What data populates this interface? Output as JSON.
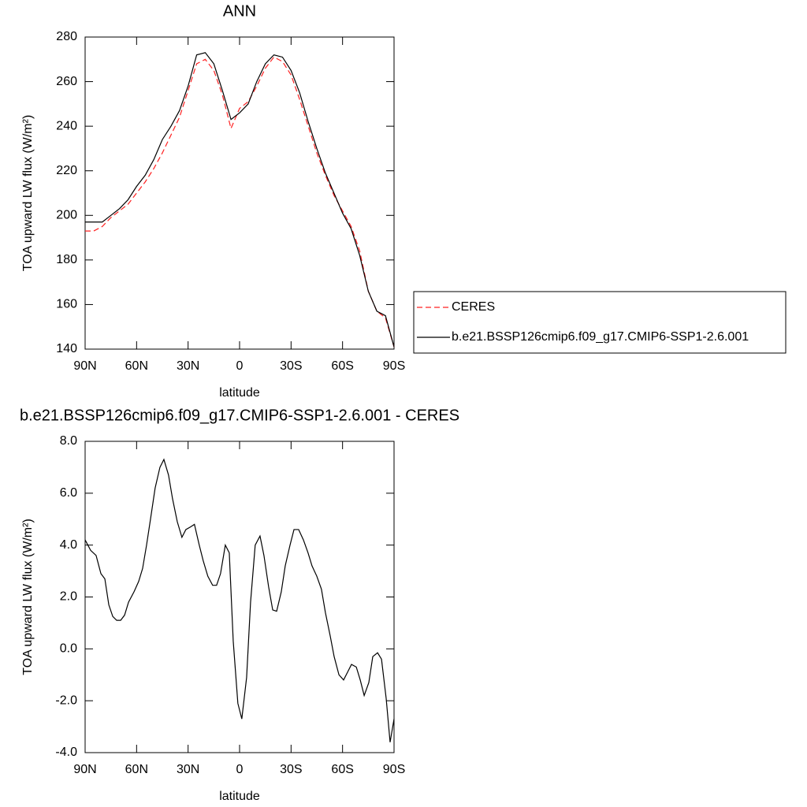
{
  "chart_data": [
    {
      "type": "line",
      "title": "ANN",
      "xlabel": "latitude",
      "ylabel": "TOA upward LW flux (W/m²)",
      "x": [
        90,
        85,
        80,
        75,
        70,
        65,
        60,
        55,
        50,
        45,
        40,
        35,
        30,
        25,
        20,
        15,
        10,
        5,
        0,
        -5,
        -10,
        -15,
        -20,
        -25,
        -30,
        -35,
        -40,
        -45,
        -50,
        -55,
        -60,
        -65,
        -70,
        -75,
        -80,
        -85,
        -90
      ],
      "series": [
        {
          "name": "CERES",
          "color": "#ff2020",
          "dashed": true,
          "values": [
            193,
            193,
            195,
            199,
            202,
            205,
            210,
            215,
            221,
            228,
            236,
            244,
            256,
            268,
            270,
            265,
            254,
            239,
            248,
            251,
            258,
            266,
            271,
            269,
            263,
            252,
            240,
            228,
            218,
            209,
            202,
            195,
            184,
            166,
            157,
            154,
            141
          ]
        },
        {
          "name": "b.e21.BSSP126cmip6.f09_g17.CMIP6-SSP1-2.6.001",
          "color": "#000000",
          "dashed": false,
          "values": [
            197,
            197,
            197,
            200,
            203,
            207,
            213,
            218,
            225,
            234,
            240,
            247,
            258,
            272,
            273,
            268,
            256,
            243,
            246,
            250,
            260,
            268,
            272,
            271,
            265,
            255,
            242,
            230,
            219,
            210,
            201,
            194,
            182,
            166,
            157,
            155,
            141
          ]
        }
      ],
      "xlim": [
        90,
        -90
      ],
      "xticks": [
        {
          "value": 90,
          "label": "90N"
        },
        {
          "value": 60,
          "label": "60N"
        },
        {
          "value": 30,
          "label": "30N"
        },
        0,
        {
          "value": -30,
          "label": "30S"
        },
        {
          "value": -60,
          "label": "60S"
        },
        {
          "value": -90,
          "label": "90S"
        }
      ],
      "ylim": [
        140,
        280
      ],
      "yticks": [
        140,
        160,
        180,
        200,
        220,
        240,
        260,
        280
      ],
      "legend": "right"
    },
    {
      "type": "line",
      "title": "b.e21.BSSP126cmip6.f09_g17.CMIP6-SSP1-2.6.001 - CERES",
      "xlabel": "latitude",
      "ylabel": "TOA upward LW flux (W/m²)",
      "x": [
        90,
        86.8,
        83.6,
        80.8,
        78.5,
        76.2,
        73.9,
        71.6,
        69.3,
        67.0,
        64.7,
        61.5,
        58.8,
        56.5,
        54.2,
        51.9,
        49.2,
        46.4,
        44.1,
        41.4,
        39.1,
        36.3,
        33.6,
        31.3,
        28.6,
        26.3,
        23.5,
        21.2,
        18.5,
        15.7,
        13.4,
        11.1,
        8.3,
        6.0,
        3.7,
        1.0,
        -1.3,
        -4.1,
        -6.4,
        -9.1,
        -11.9,
        -14.2,
        -16.9,
        -19.3,
        -21.6,
        -24.3,
        -26.6,
        -29.4,
        -31.7,
        -34.4,
        -37.2,
        -39.9,
        -42.2,
        -45.0,
        -47.7,
        -50.0,
        -52.8,
        -55.1,
        -57.9,
        -60.6,
        -62.9,
        -65.2,
        -68.0,
        -70.3,
        -72.6,
        -75.3,
        -77.6,
        -80.4,
        -82.7,
        -85.4,
        -87.7,
        -90
      ],
      "color": "#000000",
      "values": [
        4.2,
        3.8,
        3.6,
        2.9,
        2.7,
        1.7,
        1.25,
        1.1,
        1.1,
        1.3,
        1.8,
        2.2,
        2.6,
        3.1,
        4.0,
        5.0,
        6.2,
        7.0,
        7.3,
        6.7,
        5.8,
        4.9,
        4.3,
        4.6,
        4.7,
        4.8,
        4.0,
        3.4,
        2.8,
        2.45,
        2.45,
        2.9,
        4.0,
        3.7,
        0.3,
        -2.1,
        -2.7,
        -1.1,
        1.8,
        4.0,
        4.35,
        3.6,
        2.4,
        1.5,
        1.45,
        2.2,
        3.2,
        4.0,
        4.6,
        4.6,
        4.2,
        3.7,
        3.2,
        2.8,
        2.3,
        1.4,
        0.5,
        -0.3,
        -1.0,
        -1.2,
        -0.9,
        -0.6,
        -0.7,
        -1.2,
        -1.8,
        -1.3,
        -0.3,
        -0.15,
        -0.4,
        -1.9,
        -3.6,
        -2.7
      ],
      "xlim": [
        90,
        -90
      ],
      "xticks": [
        {
          "value": 90,
          "label": "90N"
        },
        {
          "value": 60,
          "label": "60N"
        },
        {
          "value": 30,
          "label": "30N"
        },
        0,
        {
          "value": -30,
          "label": "30S"
        },
        {
          "value": -60,
          "label": "60S"
        },
        {
          "value": -90,
          "label": "90S"
        }
      ],
      "ylim": [
        -4,
        8
      ],
      "yticks": [
        {
          "value": -4,
          "label": "-4.0"
        },
        {
          "value": -2,
          "label": "-2.0"
        },
        {
          "value": 0,
          "label": "0.0"
        },
        {
          "value": 2,
          "label": "2.0"
        },
        {
          "value": 4,
          "label": "4.0"
        },
        {
          "value": 6,
          "label": "6.0"
        },
        {
          "value": 8,
          "label": "8.0"
        }
      ]
    }
  ]
}
